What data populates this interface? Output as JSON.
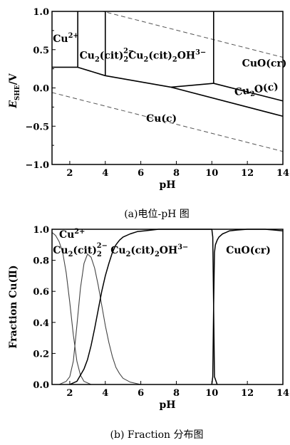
{
  "chart_data": [
    {
      "type": "line",
      "subtype": "potential-pH (Pourbaix) diagram",
      "caption": "(a)电位-pH 图",
      "xlabel": "pH",
      "ylabel_main": "E",
      "ylabel_sub": "SHE",
      "ylabel_unit": "/V",
      "xlim": [
        1,
        14
      ],
      "ylim": [
        -1.0,
        1.0
      ],
      "xticks": [
        2,
        4,
        6,
        8,
        10,
        12,
        14
      ],
      "yticks": [
        1.0,
        0.5,
        0.0,
        -0.5,
        -1.0
      ],
      "ytick_labels": [
        "1.0",
        "0.5",
        "0.0",
        "−0.5",
        "−1.0"
      ],
      "boundaries": [
        {
          "name": "Cu2+/Cu2(cit)2 2- vertical",
          "x": [
            2.45,
            2.45
          ],
          "y": [
            0.27,
            1.0
          ]
        },
        {
          "name": "Cu2(cit)2 2-/Cu2(cit)2OH3- vertical",
          "x": [
            4.0,
            4.0
          ],
          "y": [
            0.16,
            1.0
          ]
        },
        {
          "name": "Cu2(cit)2OH3-/CuO vertical",
          "x": [
            10.1,
            10.1
          ],
          "y": [
            0.06,
            1.0
          ]
        },
        {
          "name": "Cu2+/Cu horizontal",
          "x": [
            1.0,
            2.45
          ],
          "y": [
            0.27,
            0.27
          ]
        },
        {
          "name": "Cu2(cit)2 2-/Cu",
          "x": [
            2.45,
            4.0
          ],
          "y": [
            0.27,
            0.16
          ]
        },
        {
          "name": "Cu2(cit)2OH3-/Cu",
          "x": [
            4.0,
            7.7
          ],
          "y": [
            0.16,
            0.01
          ]
        },
        {
          "name": "Cu2(cit)2OH3-/Cu2O",
          "x": [
            7.7,
            10.1
          ],
          "y": [
            0.01,
            0.06
          ]
        },
        {
          "name": "CuO/Cu2O",
          "x": [
            10.1,
            14.0
          ],
          "y": [
            0.06,
            -0.17
          ]
        },
        {
          "name": "Cu2O/Cu",
          "x": [
            7.7,
            14.0
          ],
          "y": [
            0.01,
            -0.37
          ]
        }
      ],
      "water_lines": [
        {
          "name": "O2/H2O",
          "x": [
            1.0,
            14.0
          ],
          "y": [
            1.17,
            0.4
          ]
        },
        {
          "name": "H+/H2",
          "x": [
            1.0,
            14.0
          ],
          "y": [
            -0.06,
            -0.83
          ]
        }
      ],
      "regions": [
        {
          "species": "Cu",
          "sub": "",
          "sup": "2+",
          "tail": "",
          "x": 1.05,
          "y": 0.6
        },
        {
          "species": "Cu",
          "sub": "2",
          "sup": "",
          "tail": "(cit)",
          "tail_sub": "2",
          "tail_sup": "2−",
          "x": 2.55,
          "y": 0.38
        },
        {
          "species": "Cu",
          "sub": "2",
          "sup": "",
          "tail": "(cit)",
          "tail_sub": "2",
          "tail_sup": "",
          "tail2": "OH",
          "tail2_sup": "3−",
          "x": 5.3,
          "y": 0.38
        },
        {
          "species": "CuO(cr)",
          "x": 11.7,
          "y": 0.28
        },
        {
          "species": "Cu",
          "sub": "2",
          "tail": "O(c)",
          "x": 11.3,
          "y": -0.1,
          "rotate": -8
        },
        {
          "species": "Cu(c)",
          "x": 6.3,
          "y": -0.44
        }
      ]
    },
    {
      "type": "line",
      "subtype": "species fraction distribution",
      "caption": "(b) Fraction 分布图",
      "xlabel": "pH",
      "ylabel": "Fraction Cu(Ⅱ)",
      "xlim": [
        1,
        14
      ],
      "ylim": [
        0.0,
        1.0
      ],
      "xticks": [
        2,
        4,
        6,
        8,
        10,
        12,
        14
      ],
      "yticks": [
        0.0,
        0.2,
        0.4,
        0.6,
        0.8,
        1.0
      ],
      "series": [
        {
          "name": "Cu2+",
          "x": [
            1.0,
            1.2,
            1.4,
            1.6,
            1.8,
            2.0,
            2.2,
            2.4,
            2.6,
            2.8,
            3.0,
            3.2,
            3.4,
            3.6,
            4.0
          ],
          "values": [
            0.98,
            0.96,
            0.92,
            0.85,
            0.72,
            0.53,
            0.32,
            0.15,
            0.06,
            0.02,
            0.01,
            0.0,
            0.0,
            0.0,
            0.0
          ]
        },
        {
          "name": "Cu2(cit)2 2-",
          "x": [
            1.0,
            1.4,
            1.8,
            2.0,
            2.2,
            2.4,
            2.6,
            2.8,
            3.0,
            3.2,
            3.4,
            3.6,
            3.8,
            4.0,
            4.2,
            4.4,
            4.6,
            4.8,
            5.0,
            5.4,
            5.8,
            6.0,
            6.4
          ],
          "values": [
            0.0,
            0.0,
            0.02,
            0.05,
            0.15,
            0.38,
            0.62,
            0.78,
            0.84,
            0.82,
            0.75,
            0.64,
            0.51,
            0.38,
            0.27,
            0.18,
            0.11,
            0.07,
            0.04,
            0.015,
            0.005,
            0.0,
            0.0
          ]
        },
        {
          "name": "Cu2(cit)2OH3-",
          "x": [
            2.0,
            2.4,
            2.8,
            3.0,
            3.2,
            3.4,
            3.6,
            3.8,
            4.0,
            4.2,
            4.4,
            4.6,
            4.8,
            5.0,
            5.4,
            5.8,
            6.2,
            6.6,
            7.0,
            8.0,
            9.0,
            10.0,
            10.05,
            10.1,
            10.15,
            10.3
          ],
          "values": [
            0.0,
            0.02,
            0.1,
            0.16,
            0.25,
            0.36,
            0.48,
            0.6,
            0.7,
            0.78,
            0.85,
            0.9,
            0.93,
            0.95,
            0.97,
            0.985,
            0.99,
            0.995,
            1.0,
            1.0,
            1.0,
            1.0,
            0.95,
            0.5,
            0.05,
            0.0
          ]
        },
        {
          "name": "CuO(cr)",
          "x": [
            10.0,
            10.05,
            10.1,
            10.15,
            10.2,
            10.3,
            10.4,
            10.6,
            10.8,
            11.0,
            11.4,
            12.0,
            13.0,
            14.0
          ],
          "values": [
            0.0,
            0.05,
            0.5,
            0.85,
            0.9,
            0.93,
            0.95,
            0.97,
            0.98,
            0.99,
            0.995,
            1.0,
            1.0,
            0.99
          ]
        }
      ],
      "labels": [
        {
          "species": "Cu",
          "sup": "2+",
          "x": 1.4,
          "y": 1.0
        },
        {
          "species": "Cu",
          "sub": "2",
          "tail": "(cit)",
          "tail_sub": "2",
          "tail_sup": "2−",
          "x": 1.05,
          "y": 0.9
        },
        {
          "species": "Cu",
          "sub": "2",
          "tail": "(cit)",
          "tail_sub": "2",
          "tail2": "OH",
          "tail2_sup": "3−",
          "x": 4.3,
          "y": 0.9
        },
        {
          "species": "CuO(cr)",
          "x": 10.8,
          "y": 0.9
        }
      ]
    }
  ]
}
